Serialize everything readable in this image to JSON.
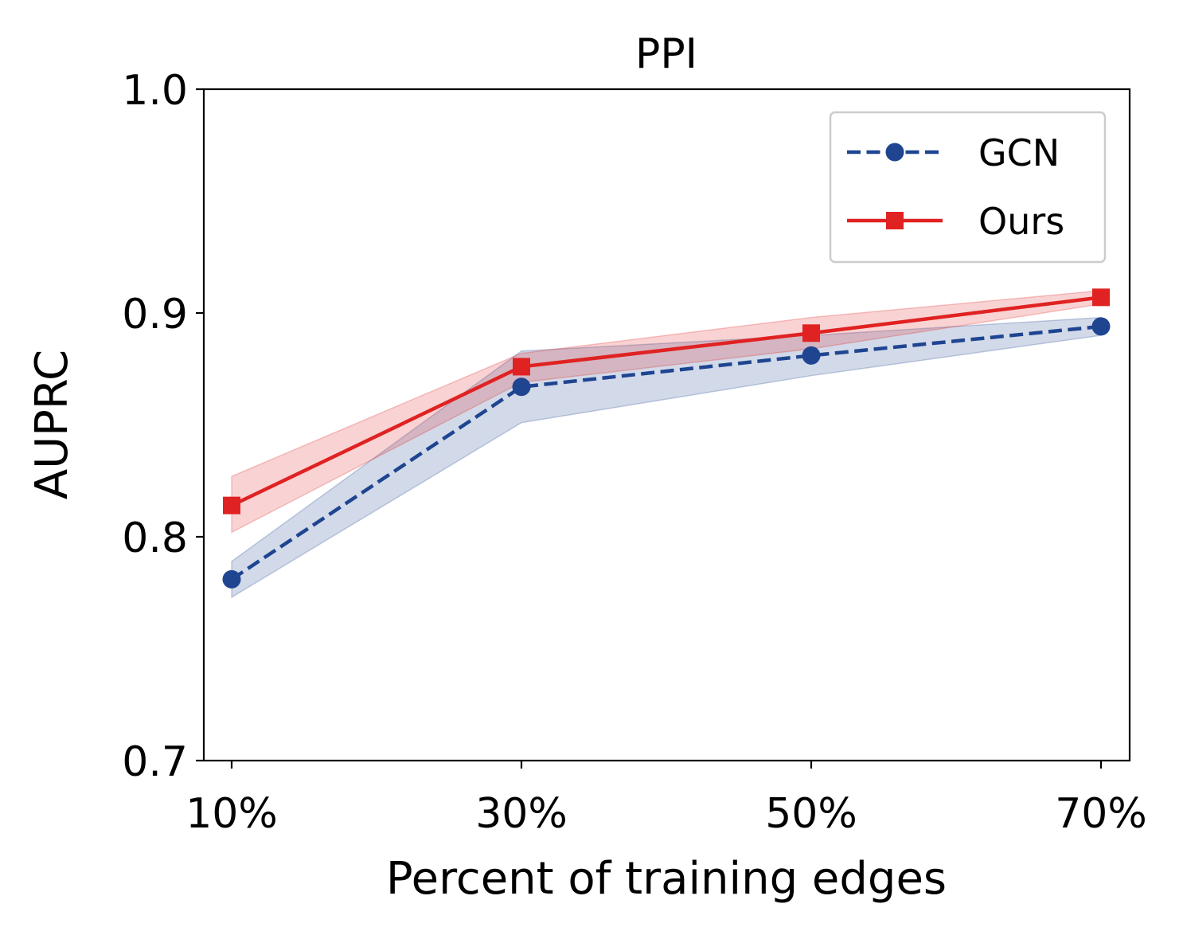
{
  "chart_data": {
    "type": "line",
    "title": "PPI",
    "xlabel": "Percent of training edges",
    "ylabel": "AUPRC",
    "categories": [
      "10%",
      "30%",
      "50%",
      "70%"
    ],
    "yticks": [
      "0.7",
      "0.8",
      "0.9",
      "1.0"
    ],
    "ylim": [
      0.7,
      1.0
    ],
    "grid": false,
    "legend_position": "top-right",
    "series": [
      {
        "name": "GCN",
        "color": "#1f4591",
        "marker": "circle",
        "linestyle": "dashed",
        "values": [
          0.781,
          0.867,
          0.881,
          0.894
        ],
        "lower": [
          0.773,
          0.851,
          0.872,
          0.89
        ],
        "upper": [
          0.789,
          0.883,
          0.89,
          0.898
        ]
      },
      {
        "name": "Ours",
        "color": "#e02222",
        "marker": "square",
        "linestyle": "solid",
        "values": [
          0.814,
          0.876,
          0.891,
          0.907
        ],
        "lower": [
          0.802,
          0.869,
          0.884,
          0.904
        ],
        "upper": [
          0.827,
          0.882,
          0.898,
          0.91
        ]
      }
    ]
  }
}
